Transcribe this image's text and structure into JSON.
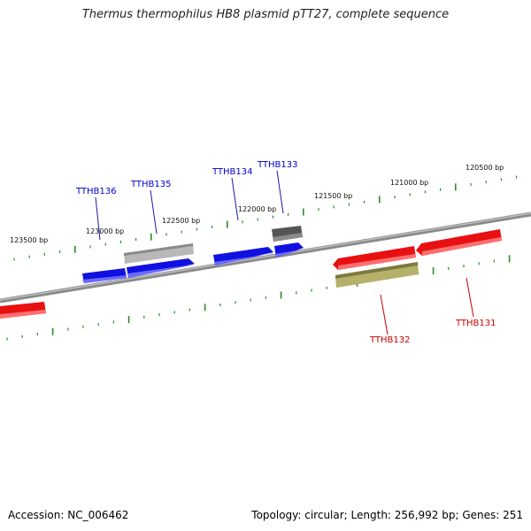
{
  "title": "Thermus thermophilus HB8 plasmid pTT27, complete sequence",
  "footer": {
    "accession": "Accession: NC_006462",
    "summary": "Topology: circular; Length: 256,992 bp; Genes: 251"
  },
  "colors": {
    "backbone": "#8a8a8a",
    "tick": "#2a8a2a",
    "forward_gene": "#1010e0",
    "reverse_gene": "#e81010",
    "label_forward": "#0000cc",
    "label_reverse": "#cc0000",
    "grey_gene": "#b8b8b8",
    "dark_gene": "#555555",
    "olive_gene": "#b5b06a"
  },
  "bp_labels": [
    "123500 bp",
    "123000 bp",
    "122500 bp",
    "122000 bp",
    "121500 bp",
    "121000 bp",
    "120500 bp"
  ],
  "gene_labels": [
    {
      "name": "TTHB136",
      "strand": "forward"
    },
    {
      "name": "TTHB135",
      "strand": "forward"
    },
    {
      "name": "TTHB134",
      "strand": "forward"
    },
    {
      "name": "TTHB133",
      "strand": "forward"
    },
    {
      "name": "TTHB132",
      "strand": "reverse"
    },
    {
      "name": "TTHB131",
      "strand": "reverse"
    }
  ]
}
